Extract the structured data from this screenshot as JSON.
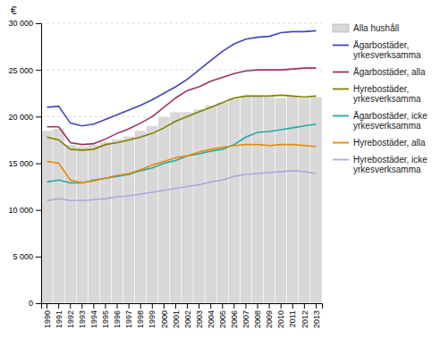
{
  "chart_data": {
    "type": "bar",
    "ylabel": "€",
    "categories": [
      1990,
      1991,
      1992,
      1993,
      1994,
      1995,
      1996,
      1997,
      1998,
      1999,
      2000,
      2001,
      2002,
      2003,
      2004,
      2005,
      2006,
      2007,
      2008,
      2009,
      2010,
      2011,
      2012,
      2013
    ],
    "series": [
      {
        "name": "Alla hushåll",
        "type": "bar",
        "color": "#d8d8d8",
        "values": [
          18500,
          18700,
          17000,
          16800,
          17000,
          17300,
          17600,
          17900,
          18500,
          19000,
          20000,
          20500,
          20500,
          20800,
          21200,
          21500,
          22000,
          22200,
          22200,
          22100,
          22000,
          22200,
          22000,
          22100
        ]
      },
      {
        "name": "Ägarbostäder,\nyrkesverksamma",
        "type": "line",
        "color": "#4444bb",
        "values": [
          21000,
          21100,
          19300,
          19000,
          19200,
          19700,
          20200,
          20700,
          21200,
          21800,
          22500,
          23200,
          24000,
          25000,
          26000,
          27000,
          27800,
          28300,
          28500,
          28600,
          29000,
          29100,
          29100,
          29200
        ]
      },
      {
        "name": "Ägarbostäder, alla",
        "type": "line",
        "color": "#993366",
        "values": [
          18900,
          18900,
          17200,
          17000,
          17100,
          17600,
          18200,
          18700,
          19300,
          20000,
          21000,
          22000,
          22800,
          23200,
          23800,
          24200,
          24600,
          24900,
          25000,
          25000,
          25000,
          25100,
          25200,
          25200
        ]
      },
      {
        "name": "Hyrebostäder,\nyrkesverksamma",
        "type": "line",
        "color": "#808000",
        "values": [
          17800,
          17500,
          16500,
          16400,
          16500,
          17000,
          17200,
          17500,
          17800,
          18200,
          18800,
          19500,
          20000,
          20500,
          21000,
          21500,
          22000,
          22200,
          22200,
          22200,
          22300,
          22200,
          22100,
          22200
        ]
      },
      {
        "name": "Ägarbostäder, icke\nyrkesverksamma",
        "type": "line",
        "color": "#22aaaa",
        "values": [
          13000,
          13200,
          12900,
          12900,
          13200,
          13400,
          13600,
          13800,
          14200,
          14500,
          15000,
          15300,
          15800,
          16000,
          16300,
          16500,
          17000,
          17800,
          18300,
          18400,
          18600,
          18800,
          19000,
          19200
        ]
      },
      {
        "name": "Hyrebostäder, alla",
        "type": "line",
        "color": "#ee8800",
        "values": [
          15200,
          15000,
          13200,
          12900,
          13100,
          13400,
          13700,
          13900,
          14300,
          14800,
          15200,
          15600,
          15800,
          16200,
          16500,
          16700,
          16900,
          17000,
          17000,
          16900,
          17000,
          17000,
          16900,
          16800
        ]
      },
      {
        "name": "Hyrebostäder, icke\nyrkesverksamma",
        "type": "line",
        "color": "#aaaadd",
        "values": [
          11000,
          11200,
          11000,
          11000,
          11100,
          11200,
          11400,
          11500,
          11700,
          11900,
          12100,
          12300,
          12500,
          12700,
          13000,
          13200,
          13600,
          13800,
          13900,
          14000,
          14100,
          14200,
          14100,
          13900
        ]
      }
    ],
    "ylim": [
      0,
      30000
    ],
    "yticks": [
      0,
      {
        "value": 5000,
        "label": "5 000"
      },
      {
        "value": 10000,
        "label": "10 000"
      },
      {
        "value": 15000,
        "label": "15 000"
      },
      {
        "value": 20000,
        "label": "20 000"
      },
      {
        "value": 25000,
        "label": "25 000"
      },
      {
        "value": 30000,
        "label": "30 000"
      }
    ],
    "grid": true,
    "legend": "right"
  }
}
